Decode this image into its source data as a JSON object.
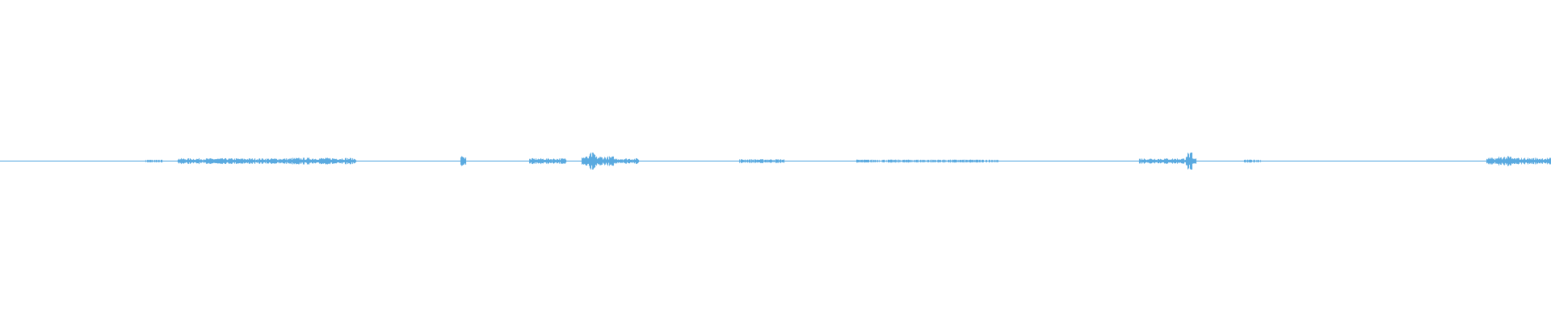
{
  "waveform": {
    "color": "#5aaae0",
    "background": "#ffffff"
  }
}
